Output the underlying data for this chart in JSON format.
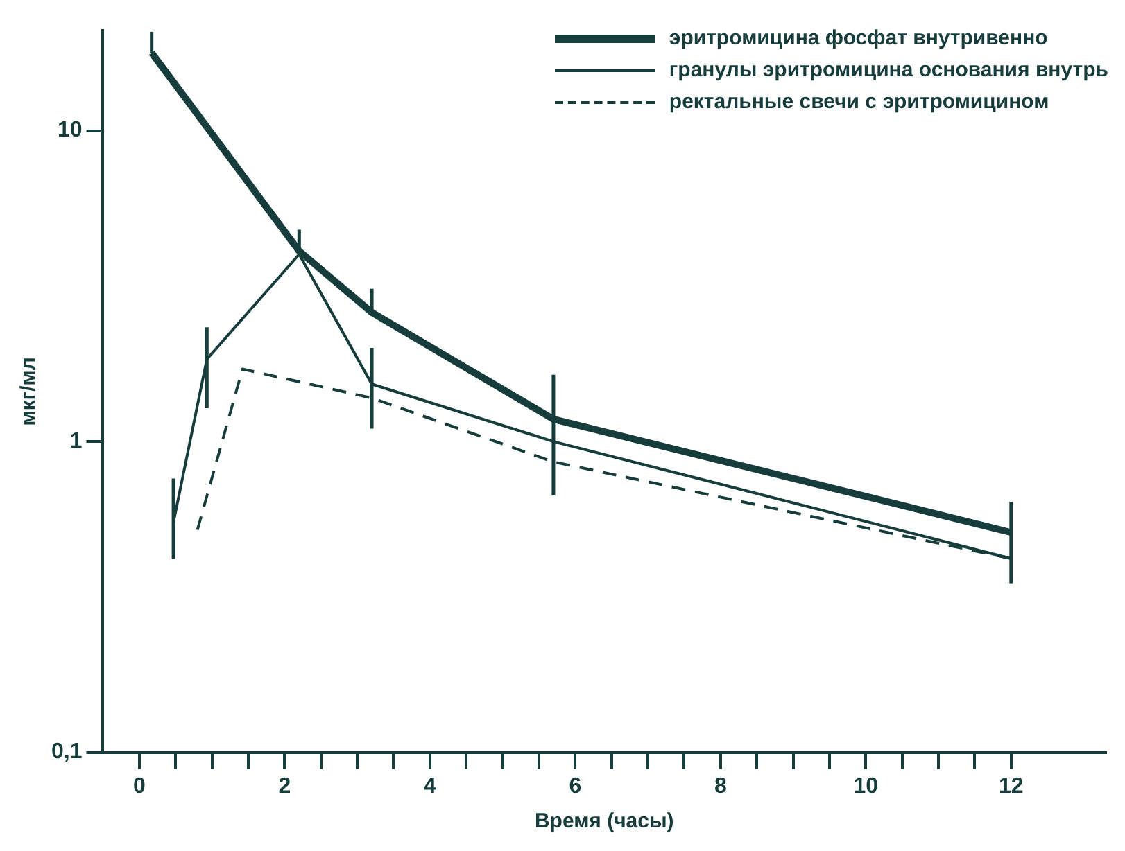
{
  "chart_data": {
    "type": "line",
    "xlabel": "Время (часы)",
    "ylabel": "мкг/мл",
    "log": "y",
    "xlim": [
      -0.5,
      13.3
    ],
    "ylim": [
      0.1,
      21
    ],
    "xticks": [
      0,
      {
        "value": 0.5,
        "label": null
      },
      2,
      {
        "value": 1,
        "label": null
      },
      {
        "value": 1.5,
        "label": null
      },
      {
        "value": 2.5,
        "label": null
      },
      {
        "value": 3,
        "label": null
      },
      {
        "value": 3.5,
        "label": null
      },
      4,
      {
        "value": 4.5,
        "label": null
      },
      {
        "value": 5,
        "label": null
      },
      {
        "value": 5.5,
        "label": null
      },
      6,
      {
        "value": 6.5,
        "label": null
      },
      {
        "value": 7,
        "label": null
      },
      {
        "value": 7.5,
        "label": null
      },
      8,
      {
        "value": 8.5,
        "label": null
      },
      {
        "value": 9,
        "label": null
      },
      {
        "value": 9.5,
        "label": null
      },
      10,
      {
        "value": 10.5,
        "label": null
      },
      {
        "value": 11,
        "label": null
      },
      {
        "value": 11.5,
        "label": null
      },
      12
    ],
    "yticks": [
      {
        "value": 0.1,
        "label": "0,1"
      },
      1,
      10
    ],
    "grid": false,
    "legend": "top right",
    "marker": "none",
    "series": [
      {
        "name": "эритромицина фосфат внутривенно",
        "color": "#163c3c",
        "x": [
          0.17,
          2.2,
          3.2,
          5.7,
          12
        ],
        "values": [
          17.8,
          4.1,
          2.6,
          1.18,
          0.51
        ],
        "errors": [
          [
            17.8,
            20.8
          ],
          [
            4.0,
            4.8
          ],
          [
            2.6,
            3.1
          ],
          [
            0.67,
            1.64
          ],
          [
            0.35,
            0.64
          ]
        ],
        "line_style": "solid"
      },
      {
        "name": "гранулы эритромицина основания внутрь",
        "color": "#163c3c",
        "x": [
          0.47,
          0.93,
          2.2,
          3.2,
          5.7,
          12
        ],
        "values": [
          0.55,
          1.84,
          4.0,
          1.53,
          1.0,
          0.42
        ],
        "errors": [
          [
            0.42,
            0.76
          ],
          [
            1.28,
            2.33
          ],
          null,
          [
            1.1,
            2.0
          ],
          null,
          null
        ],
        "line_style": "solid"
      },
      {
        "name": "ректальные свечи с эритромицином",
        "color": "#163c3c",
        "x": [
          0.8,
          1.42,
          3.2,
          5.7,
          12
        ],
        "values": [
          0.52,
          1.71,
          1.38,
          0.86,
          0.42
        ],
        "line_style": "dashed"
      }
    ]
  }
}
